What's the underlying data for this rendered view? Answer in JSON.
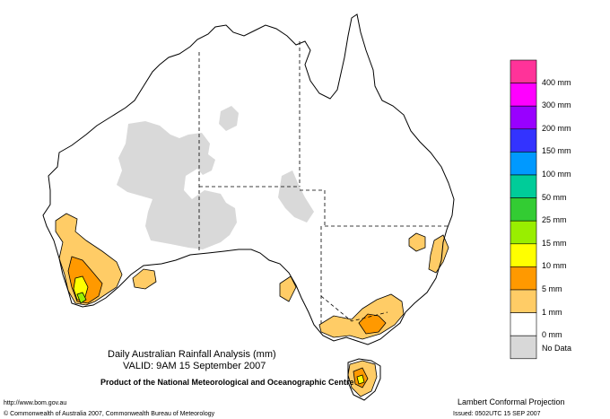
{
  "map": {
    "title": "Daily Australian Rainfall Analysis (mm)",
    "valid": "VALID: 9AM 15 September 2007",
    "producer": "Product of the National Meteorological and Oceanographic Centre",
    "projection": "Lambert Conformal Projection",
    "url": "http://www.bom.gov.au",
    "copyright": "© Commonwealth of Australia 2007, Commonwealth Bureau of Meteorology",
    "issued": "Issued: 0502UTC 15 SEP 2007"
  },
  "legend": [
    {
      "label": "400 mm",
      "color": "#ff3399"
    },
    {
      "label": "300 mm",
      "color": "#ff00ff"
    },
    {
      "label": "200 mm",
      "color": "#9900ff"
    },
    {
      "label": "150 mm",
      "color": "#3333ff"
    },
    {
      "label": "100 mm",
      "color": "#0099ff"
    },
    {
      "label": "50 mm",
      "color": "#00cc99"
    },
    {
      "label": "25 mm",
      "color": "#33cc33"
    },
    {
      "label": "15 mm",
      "color": "#99ee00"
    },
    {
      "label": "10 mm",
      "color": "#ffff00"
    },
    {
      "label": "5 mm",
      "color": "#ff9900"
    },
    {
      "label": "1 mm",
      "color": "#ffcc66"
    },
    {
      "label": "0 mm",
      "color": "#ffffff"
    },
    {
      "label": "No Data",
      "color": "#d8d8d8"
    }
  ]
}
